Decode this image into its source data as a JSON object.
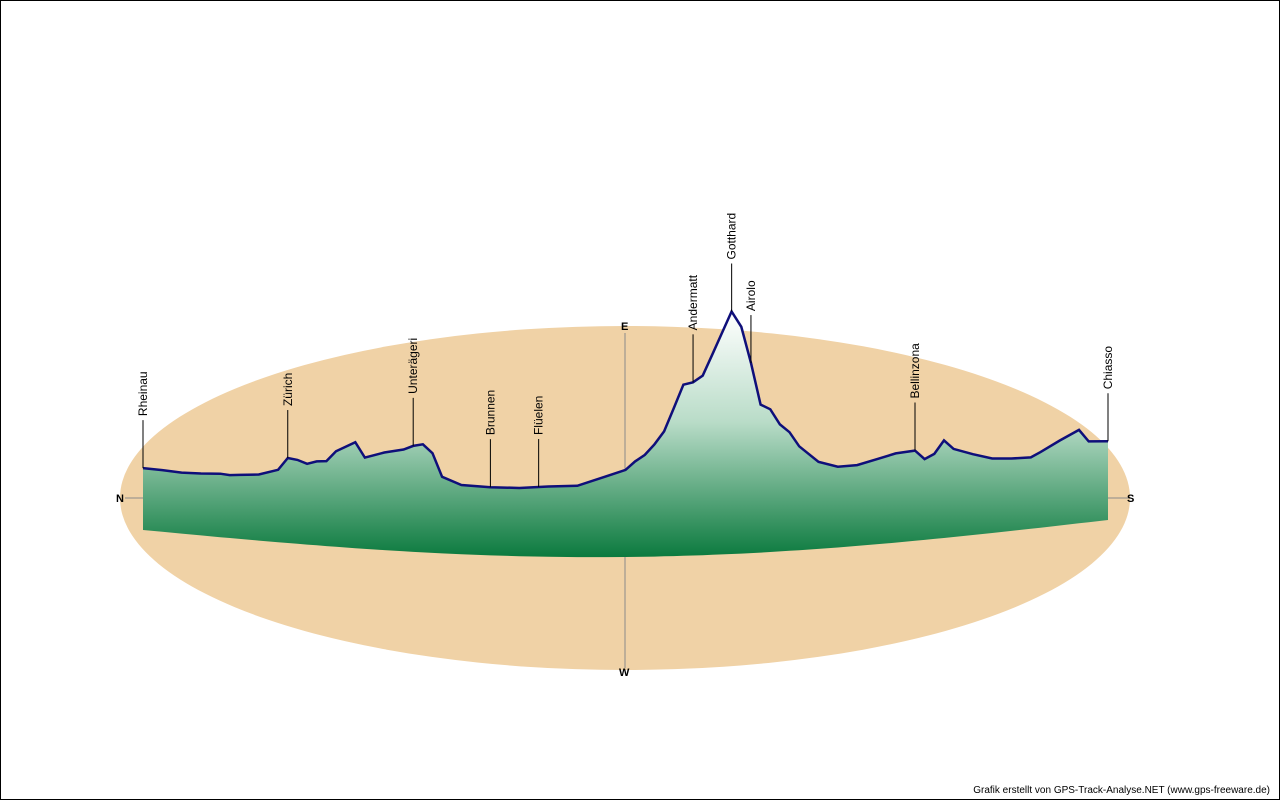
{
  "chart_data": {
    "type": "area",
    "title": "",
    "xlabel": "",
    "ylabel": "",
    "compass": {
      "north": "N",
      "south": "S",
      "east": "E",
      "west": "W"
    },
    "places": [
      {
        "name": "Rheinau",
        "elev": 380
      },
      {
        "name": "Zürich",
        "elev": 400
      },
      {
        "name": "Unterägeri",
        "elev": 730
      },
      {
        "name": "Brunnen",
        "elev": 435
      },
      {
        "name": "Flüelen",
        "elev": 435
      },
      {
        "name": "Andermatt",
        "elev": 1440
      },
      {
        "name": "Gotthard",
        "elev": 2100
      },
      {
        "name": "Airolo",
        "elev": 1150
      },
      {
        "name": "Bellinzona",
        "elev": 240
      },
      {
        "name": "Chiasso",
        "elev": 240
      }
    ],
    "profile": [
      [
        0,
        380
      ],
      [
        2,
        378
      ],
      [
        4,
        372
      ],
      [
        6,
        380
      ],
      [
        8,
        395
      ],
      [
        9,
        390
      ],
      [
        10,
        400
      ],
      [
        12,
        420
      ],
      [
        14,
        480
      ],
      [
        15,
        600
      ],
      [
        16,
        590
      ],
      [
        17,
        560
      ],
      [
        18,
        590
      ],
      [
        19,
        600
      ],
      [
        20,
        700
      ],
      [
        22,
        800
      ],
      [
        23,
        660
      ],
      [
        24,
        690
      ],
      [
        25,
        720
      ],
      [
        27,
        760
      ],
      [
        28,
        800
      ],
      [
        29,
        820
      ],
      [
        30,
        740
      ],
      [
        31,
        520
      ],
      [
        33,
        450
      ],
      [
        36,
        440
      ],
      [
        39,
        440
      ],
      [
        42,
        460
      ],
      [
        45,
        470
      ],
      [
        48,
        560
      ],
      [
        50,
        620
      ],
      [
        51,
        700
      ],
      [
        52,
        760
      ],
      [
        53,
        860
      ],
      [
        54,
        980
      ],
      [
        55,
        1200
      ],
      [
        56,
        1420
      ],
      [
        57,
        1440
      ],
      [
        58,
        1500
      ],
      [
        59,
        1700
      ],
      [
        60,
        1900
      ],
      [
        61,
        2100
      ],
      [
        62,
        1950
      ],
      [
        63,
        1600
      ],
      [
        64,
        1200
      ],
      [
        65,
        1150
      ],
      [
        66,
        1000
      ],
      [
        67,
        920
      ],
      [
        68,
        780
      ],
      [
        70,
        620
      ],
      [
        72,
        560
      ],
      [
        74,
        560
      ],
      [
        76,
        600
      ],
      [
        78,
        640
      ],
      [
        80,
        650
      ],
      [
        81,
        560
      ],
      [
        82,
        600
      ],
      [
        83,
        720
      ],
      [
        84,
        630
      ],
      [
        86,
        560
      ],
      [
        88,
        500
      ],
      [
        90,
        480
      ],
      [
        92,
        470
      ],
      [
        93,
        510
      ],
      [
        95,
        600
      ],
      [
        97,
        680
      ],
      [
        98,
        560
      ],
      [
        100,
        540
      ]
    ]
  },
  "footer": {
    "credit": "Grafik erstellt von GPS-Track-Analyse.NET (www.gps-freeware.de)"
  }
}
